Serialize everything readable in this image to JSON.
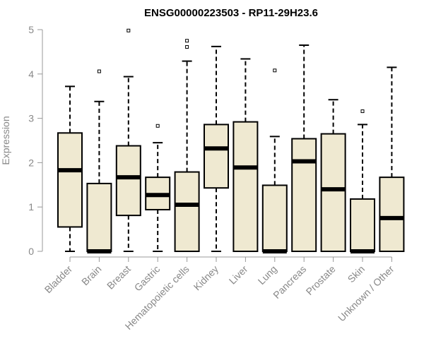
{
  "chart_data": {
    "type": "boxplot",
    "title": "ENSG00000223503 - RP11-29H23.6",
    "xlabel": "",
    "ylabel": "Expression",
    "ylim": [
      0,
      5
    ],
    "yticks": [
      0,
      1,
      2,
      3,
      4,
      5
    ],
    "grid": false,
    "box_color": "#efe9d1",
    "categories": [
      "Bladder",
      "Brain",
      "Breast",
      "Gastric",
      "Hematopoietic cells",
      "Kidney",
      "Liver",
      "Lung",
      "Pancreas",
      "Prostate",
      "Skin",
      "Unknown / Other"
    ],
    "boxes": [
      {
        "whisker_low": 0,
        "q1": 0.55,
        "median": 1.83,
        "q3": 2.67,
        "whisker_high": 3.72,
        "outliers": []
      },
      {
        "whisker_low": 0,
        "q1": 0,
        "median": 0,
        "q3": 1.53,
        "whisker_high": 3.38,
        "outliers": [
          4.06
        ]
      },
      {
        "whisker_low": 0,
        "q1": 0.81,
        "median": 1.67,
        "q3": 2.38,
        "whisker_high": 3.94,
        "outliers": [
          4.98
        ]
      },
      {
        "whisker_low": 0,
        "q1": 0.94,
        "median": 1.27,
        "q3": 1.67,
        "whisker_high": 2.45,
        "outliers": [
          2.83
        ]
      },
      {
        "whisker_low": 0,
        "q1": 0,
        "median": 1.05,
        "q3": 1.79,
        "whisker_high": 4.29,
        "outliers": [
          4.61,
          4.75
        ]
      },
      {
        "whisker_low": 0,
        "q1": 1.43,
        "median": 2.32,
        "q3": 2.86,
        "whisker_high": 4.62,
        "outliers": []
      },
      {
        "whisker_low": 0,
        "q1": 0,
        "median": 1.89,
        "q3": 2.92,
        "whisker_high": 4.34,
        "outliers": []
      },
      {
        "whisker_low": 0,
        "q1": 0,
        "median": 0,
        "q3": 1.49,
        "whisker_high": 2.59,
        "outliers": [
          4.08
        ]
      },
      {
        "whisker_low": 0,
        "q1": 0,
        "median": 2.03,
        "q3": 2.54,
        "whisker_high": 4.65,
        "outliers": []
      },
      {
        "whisker_low": 0,
        "q1": 0,
        "median": 1.4,
        "q3": 2.65,
        "whisker_high": 3.42,
        "outliers": []
      },
      {
        "whisker_low": 0,
        "q1": 0,
        "median": 0,
        "q3": 1.18,
        "whisker_high": 2.86,
        "outliers": [
          3.16
        ]
      },
      {
        "whisker_low": 0,
        "q1": 0,
        "median": 0.75,
        "q3": 1.67,
        "whisker_high": 4.15,
        "outliers": []
      }
    ]
  }
}
